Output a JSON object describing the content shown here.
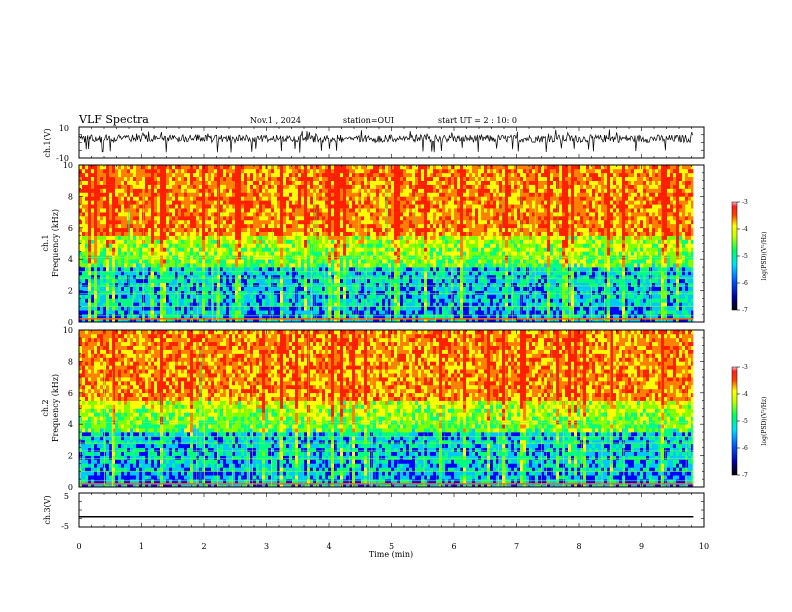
{
  "header": {
    "title": "VLF Spectra",
    "date": "Nov.1 , 2024",
    "station": "station=OUI",
    "start_ut": "start UT = 2 : 10: 0"
  },
  "chart_data": [
    {
      "type": "line",
      "name": "ch1-waveform",
      "ylabel": "ch.1(V)",
      "ylim": [
        -10,
        10
      ],
      "ytick_labels": [
        "10",
        "-10"
      ],
      "x_range_min": [
        0,
        9.83
      ]
    },
    {
      "type": "heatmap",
      "name": "ch1-spectrogram",
      "ylabel_line1": "ch.1",
      "ylabel_line2": "Frequency (kHz)",
      "ylim": [
        0,
        10
      ],
      "ytick_labels": [
        "0",
        "2",
        "4",
        "6",
        "8",
        "10"
      ],
      "x_range_min": [
        0,
        9.83
      ],
      "colorbar": {
        "label": "log(PSD)(V²/Hz)",
        "range": [
          -7,
          -3
        ],
        "tick_labels": [
          "-3",
          "-4",
          "-5",
          "-6",
          "-7"
        ]
      }
    },
    {
      "type": "heatmap",
      "name": "ch2-spectrogram",
      "ylabel_line1": "ch.2",
      "ylabel_line2": "Frequency (kHz)",
      "ylim": [
        0,
        10
      ],
      "ytick_labels": [
        "0",
        "2",
        "4",
        "6",
        "8",
        "10"
      ],
      "x_range_min": [
        0,
        9.83
      ],
      "colorbar": {
        "label": "log(PSD)(V²/Hz)",
        "range": [
          -7,
          -3
        ],
        "tick_labels": [
          "-3",
          "-4",
          "-5",
          "-6",
          "-7"
        ]
      }
    },
    {
      "type": "line",
      "name": "ch3-waveform",
      "ylabel": "ch.3(V)",
      "ylim": [
        -5,
        5
      ],
      "ytick_labels": [
        "5",
        "-5"
      ],
      "x": [
        0,
        9.83
      ],
      "y": [
        -2,
        -2
      ]
    }
  ],
  "x_axis": {
    "label": "Time (min)",
    "range": [
      0,
      10
    ],
    "tick_labels": [
      "0",
      "1",
      "2",
      "3",
      "4",
      "5",
      "6",
      "7",
      "8",
      "9",
      "10"
    ]
  },
  "colors": {
    "colormap": [
      "#000080",
      "#0000ff",
      "#00c8ff",
      "#00ff80",
      "#80ff00",
      "#ffff00",
      "#ff8000",
      "#ff2000"
    ],
    "axis": "#000000",
    "trace": "#000000"
  }
}
